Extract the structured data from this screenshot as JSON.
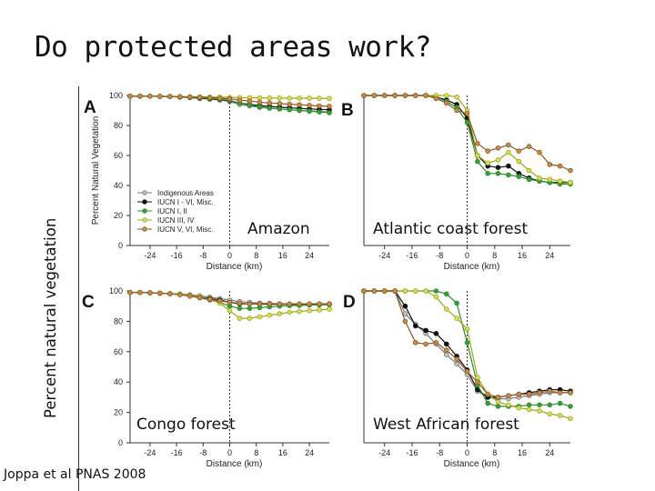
{
  "slide": {
    "title": "Do protected areas work?",
    "side_label": "Percent natural vegetation",
    "citation": "Joppa et al PNAS 2008"
  },
  "series_styles": [
    {
      "name": "Indigenous Areas",
      "line": "#7a7a7a",
      "fill": "#bfbfbf"
    },
    {
      "name": "IUCN I - VI, Misc.",
      "line": "#111111",
      "fill": "#111111"
    },
    {
      "name": "IUCN I, II",
      "line": "#2e8b2e",
      "fill": "#34a034"
    },
    {
      "name": "IUCN III, IV",
      "line": "#9aa817",
      "fill": "#d8dc5a"
    },
    {
      "name": "IUCN V, VI, Misc.",
      "line": "#8a5a22",
      "fill": "#c98a4a"
    }
  ],
  "chart_data": [
    {
      "type": "line",
      "panel": "A",
      "region": "Amazon",
      "ylabel": "Percent Natural Vegetation",
      "xlabel": "Distance (km)",
      "ylim": [
        0,
        100
      ],
      "xlim": [
        -30,
        30
      ],
      "yticks": [
        "0",
        "20",
        "40",
        "60",
        "80",
        "100"
      ],
      "xticks": [
        "-24",
        "-16",
        "-8",
        "0",
        "8",
        "16",
        "24"
      ],
      "legend": [
        "Indigenous Areas",
        "IUCN I - VI, Misc.",
        "IUCN I, II",
        "IUCN III, IV",
        "IUCN V, VI, Misc."
      ],
      "x": [
        -30,
        -27,
        -24,
        -21,
        -18,
        -15,
        -12,
        -9,
        -6,
        -3,
        0,
        3,
        6,
        9,
        12,
        15,
        18,
        21,
        24,
        27,
        30
      ],
      "series": [
        {
          "name": "Indigenous Areas",
          "values": [
            99.5,
            99.5,
            99.5,
            99.4,
            99.3,
            99,
            98.6,
            98,
            97.5,
            97,
            96,
            94,
            93,
            92,
            91.5,
            91,
            90.5,
            90,
            89.7,
            89.4,
            89
          ]
        },
        {
          "name": "IUCN I - VI, Misc.",
          "values": [
            99.5,
            99.5,
            99.5,
            99.4,
            99.3,
            99,
            98.7,
            98.2,
            97.8,
            97.3,
            96.5,
            95,
            94,
            93.3,
            92.7,
            92.2,
            91.8,
            91.4,
            91,
            90.7,
            90.5
          ]
        },
        {
          "name": "IUCN I, II",
          "values": [
            99.5,
            99.5,
            99.5,
            99.4,
            99.3,
            99.1,
            98.8,
            98.4,
            98,
            97.5,
            96.8,
            95,
            93.5,
            92.5,
            91.5,
            91,
            90.5,
            90,
            89.5,
            89,
            88.5
          ]
        },
        {
          "name": "IUCN III, IV",
          "values": [
            99.5,
            99.5,
            99.5,
            99.5,
            99.4,
            99.3,
            99.2,
            99.1,
            99,
            98.9,
            98.7,
            98.6,
            98.5,
            98.4,
            98.3,
            98.3,
            98.2,
            98.2,
            98.1,
            98.1,
            98
          ]
        },
        {
          "name": "IUCN V, VI, Misc.",
          "values": [
            99.5,
            99.5,
            99.5,
            99.4,
            99.3,
            99.2,
            99,
            98.8,
            98.5,
            98.2,
            97.8,
            97,
            96.3,
            95.6,
            95,
            94.6,
            94.2,
            93.8,
            93.4,
            93,
            92.8
          ]
        }
      ]
    },
    {
      "type": "line",
      "panel": "B",
      "region": "Atlantic coast forest",
      "xlabel": "Distance (km)",
      "ylim": [
        0,
        100
      ],
      "xlim": [
        -30,
        30
      ],
      "xticks": [
        "-24",
        "-16",
        "-8",
        "0",
        "8",
        "16",
        "24"
      ],
      "x": [
        -30,
        -27,
        -24,
        -21,
        -18,
        -15,
        -12,
        -9,
        -6,
        -3,
        0,
        3,
        6,
        9,
        12,
        15,
        18,
        21,
        24,
        27,
        30
      ],
      "series": [
        {
          "name": "IUCN I - VI, Misc.",
          "values": [
            100,
            100,
            100,
            100,
            100,
            100,
            100,
            99,
            97,
            94,
            85,
            60,
            53,
            52,
            53,
            48,
            45,
            43,
            42,
            42,
            42
          ]
        },
        {
          "name": "IUCN I, II",
          "values": [
            100,
            100,
            100,
            100,
            100,
            100,
            100,
            99,
            96,
            92,
            82,
            56,
            48,
            48,
            47,
            46,
            44,
            43,
            42,
            41,
            41
          ]
        },
        {
          "name": "IUCN III, IV",
          "values": [
            100,
            100,
            100,
            100,
            100,
            100,
            100,
            100,
            100,
            99,
            90,
            60,
            55,
            57,
            62,
            56,
            50,
            45,
            44,
            43,
            42
          ]
        },
        {
          "name": "IUCN V, VI, Misc.",
          "values": [
            100,
            100,
            100,
            100,
            100,
            100,
            100,
            98,
            95,
            90,
            88,
            68,
            63,
            65,
            67,
            63,
            66,
            62,
            54,
            53,
            50
          ]
        }
      ]
    },
    {
      "type": "line",
      "panel": "C",
      "region": "Congo forest",
      "xlabel": "Distance (km)",
      "ylim": [
        0,
        100
      ],
      "xlim": [
        -30,
        30
      ],
      "yticks": [
        "0",
        "20",
        "40",
        "60",
        "80",
        "100"
      ],
      "xticks": [
        "-24",
        "-16",
        "-8",
        "0",
        "8",
        "16",
        "24"
      ],
      "x": [
        -30,
        -27,
        -24,
        -21,
        -18,
        -15,
        -12,
        -9,
        -6,
        -3,
        0,
        3,
        6,
        9,
        12,
        15,
        18,
        21,
        24,
        27,
        30
      ],
      "series": [
        {
          "name": "Indigenous Areas",
          "values": [
            99,
            99,
            98.8,
            98.6,
            98.3,
            98,
            97.5,
            96.8,
            96,
            95,
            94,
            93,
            92.5,
            92,
            91.8,
            91.5,
            91.3,
            91.2,
            91,
            91,
            91
          ]
        },
        {
          "name": "IUCN I - VI, Misc.",
          "values": [
            99,
            99,
            98.8,
            98.5,
            98.2,
            97.8,
            97,
            96,
            95,
            94,
            92.5,
            91.5,
            91.5,
            91.3,
            91.2,
            91.2,
            91.2,
            91.2,
            91.3,
            91.4,
            91.5
          ]
        },
        {
          "name": "IUCN I, II",
          "values": [
            99,
            99,
            98.8,
            98.5,
            98.2,
            97.8,
            97,
            95.5,
            94,
            92.5,
            90,
            88.5,
            88.5,
            89,
            89.5,
            90,
            90.3,
            90.5,
            90.7,
            90.8,
            91
          ]
        },
        {
          "name": "IUCN III, IV",
          "values": [
            99,
            99,
            98.8,
            98.6,
            98.3,
            97.8,
            97,
            96,
            94.5,
            92,
            87,
            82,
            82,
            83,
            84,
            85,
            86,
            86.5,
            87,
            87.5,
            88
          ]
        },
        {
          "name": "IUCN V, VI, Misc.",
          "values": [
            99,
            99,
            98.8,
            98.5,
            98,
            97.5,
            96.5,
            95.5,
            94.5,
            93.5,
            92.5,
            92,
            91.5,
            91.5,
            91.5,
            91.5,
            91.5,
            91.5,
            91.5,
            91.5,
            91.5
          ]
        }
      ]
    },
    {
      "type": "line",
      "panel": "D",
      "region": "West African forest",
      "xlabel": "Distance (km)",
      "ylim": [
        0,
        100
      ],
      "xlim": [
        -30,
        30
      ],
      "xticks": [
        "-24",
        "-16",
        "-8",
        "0",
        "8",
        "16",
        "24"
      ],
      "x": [
        -30,
        -27,
        -24,
        -21,
        -18,
        -15,
        -12,
        -9,
        -6,
        -3,
        0,
        3,
        6,
        9,
        12,
        15,
        18,
        21,
        24,
        27,
        30
      ],
      "series": [
        {
          "name": "Indigenous Areas",
          "values": [
            100,
            100,
            100,
            100,
            85,
            78,
            72,
            65,
            58,
            52,
            45,
            34,
            30,
            29,
            29,
            30,
            31,
            32,
            33,
            33,
            33
          ]
        },
        {
          "name": "IUCN I - VI, Misc.",
          "values": [
            100,
            100,
            100,
            100,
            90,
            77,
            74,
            72,
            65,
            57,
            48,
            35,
            30,
            30,
            31,
            32,
            33,
            34,
            35,
            35,
            34
          ]
        },
        {
          "name": "IUCN I, II",
          "values": [
            100,
            100,
            100,
            100,
            100,
            100,
            100,
            100,
            98,
            92,
            66,
            38,
            26,
            24,
            24,
            24,
            25,
            25,
            25,
            26,
            24
          ]
        },
        {
          "name": "IUCN III, IV",
          "values": [
            100,
            100,
            100,
            100,
            100,
            100,
            100,
            96,
            88,
            82,
            75,
            43,
            32,
            27,
            25,
            23,
            22,
            21,
            19,
            18,
            16
          ]
        },
        {
          "name": "IUCN V, VI, Misc.",
          "values": [
            100,
            100,
            100,
            100,
            80,
            66,
            65,
            66,
            61,
            55,
            47,
            40,
            32,
            30,
            31,
            32,
            32,
            33,
            34,
            33,
            33
          ]
        }
      ]
    }
  ]
}
